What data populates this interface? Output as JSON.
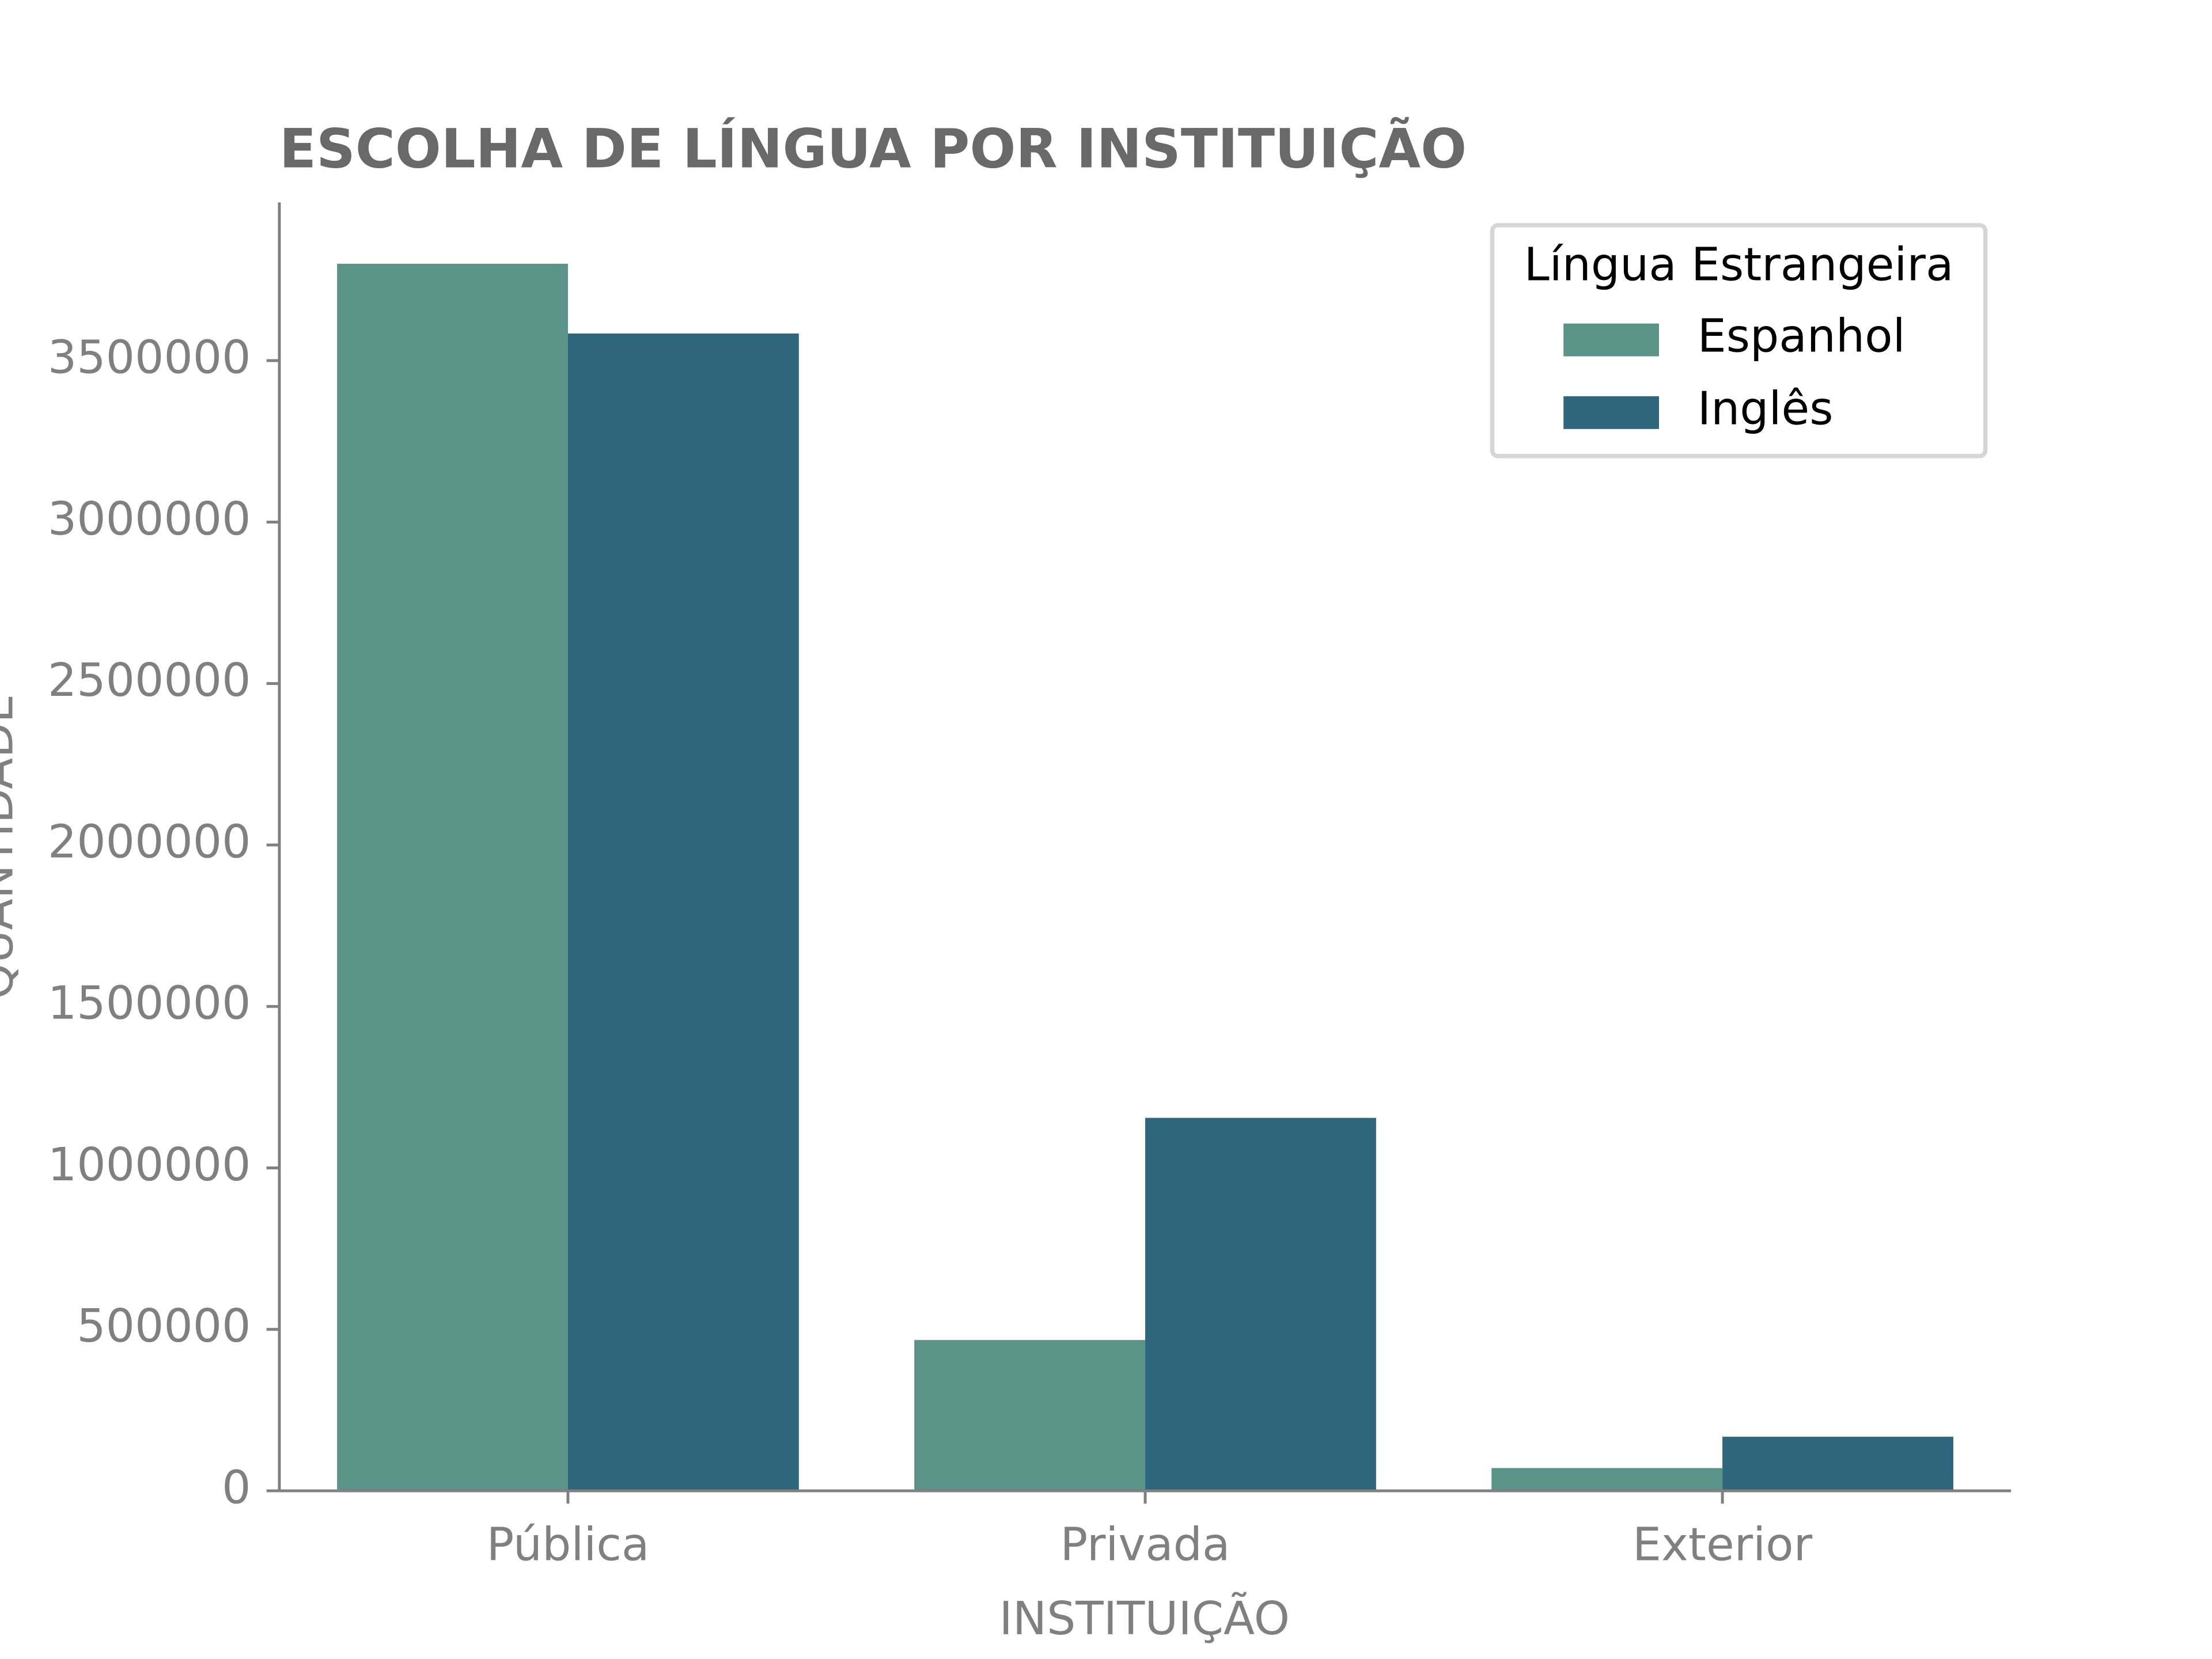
{
  "chart_data": {
    "type": "bar",
    "title": "ESCOLHA DE LÍNGUA POR INSTITUIÇÃO",
    "x_label": "INSTITUIÇÃO",
    "y_label": "QUANTIDADE",
    "legend_title": "Língua Estrangeira",
    "legend": "upper right",
    "categories": [
      "Pública",
      "Privada",
      "Exterior"
    ],
    "series": [
      {
        "name": "Espanhol",
        "color": "#5c9389",
        "values": [
          3800000,
          467000,
          70500
        ]
      },
      {
        "name": "Inglês",
        "color": "#2e667c",
        "values": [
          3584000,
          1155000,
          167500
        ]
      }
    ],
    "ylim": [
      0,
      3990000
    ],
    "yticks": [
      0,
      500000,
      1000000,
      1500000,
      2000000,
      2500000,
      3000000,
      3500000
    ]
  }
}
